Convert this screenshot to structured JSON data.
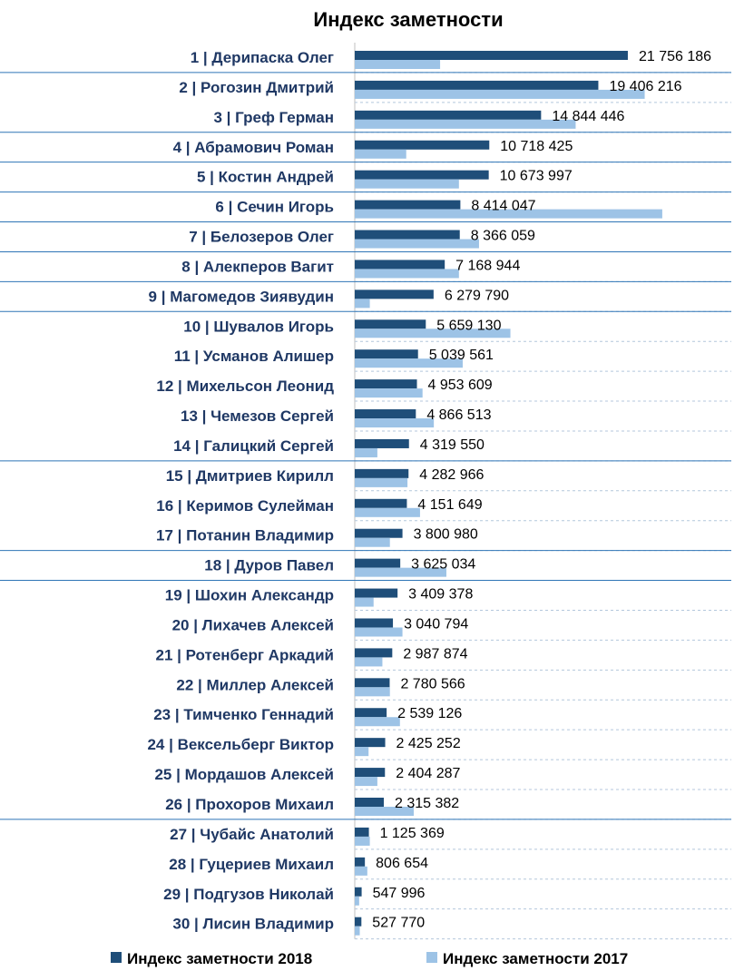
{
  "chart_data": {
    "type": "bar",
    "orientation": "horizontal",
    "title": "Индекс заметности",
    "categories": [
      "1 | Дерипаска Олег",
      "2 | Рогозин Дмитрий",
      "3 | Греф Герман",
      "4 | Абрамович Роман",
      "5 | Костин Андрей",
      "6 | Сечин Игорь",
      "7 | Белозеров Олег",
      "8 | Алекперов Вагит",
      "9 | Магомедов Зиявудин",
      "10 | Шувалов Игорь",
      "11 | Усманов Алишер",
      "12 | Михельсон Леонид",
      "13 | Чемезов Сергей",
      "14 | Галицкий Сергей",
      "15 | Дмитриев Кирилл",
      "16 | Керимов Сулейман",
      "17 | Потанин Владимир",
      "18 | Дуров Павел",
      "19 | Шохин Александр",
      "20 | Лихачев Алексей",
      "21 | Ротенберг Аркадий",
      "22 | Миллер Алексей",
      "23 | Тимченко Геннадий",
      "24 | Вексельберг Виктор",
      "25 | Мордашов Алексей",
      "26 | Прохоров Михаил",
      "27 | Чубайс Анатолий",
      "28 | Гуцериев Михаил",
      "29 | Подгузов Николай",
      "30 | Лисин Владимир"
    ],
    "series": [
      {
        "name": "Индекс заметности 2018",
        "color": "#1f4e79",
        "values": [
          21756186,
          19406216,
          14844446,
          10718425,
          10673997,
          8414047,
          8366059,
          7168944,
          6279790,
          5659130,
          5039561,
          4953609,
          4866513,
          4319550,
          4282966,
          4151649,
          3800980,
          3625034,
          3409378,
          3040794,
          2987874,
          2780566,
          2539126,
          2425252,
          2404287,
          2315382,
          1125369,
          806654,
          547996,
          527770
        ],
        "labels": [
          "21 756 186",
          "19 406 216",
          "14 844 446",
          "10 718 425",
          "10 673 997",
          "8 414 047",
          "8 366 059",
          "7 168 944",
          "6 279 790",
          "5 659 130",
          "5 039 561",
          "4 953 609",
          "4 866 513",
          "4 319 550",
          "4 282 966",
          "4 151 649",
          "3 800 980",
          "3 625 034",
          "3 409 378",
          "3 040 794",
          "2 987 874",
          "2 780 566",
          "2 539 126",
          "2 425 252",
          "2 404 287",
          "2 315 382",
          "1 125 369",
          "806 654",
          "547 996",
          "527 770"
        ]
      },
      {
        "name": "Индекс заметности 2017",
        "color": "#9dc3e6",
        "values": [
          6800000,
          23100000,
          17600000,
          4100000,
          8300000,
          24500000,
          9900000,
          8300000,
          1200000,
          12400000,
          8600000,
          5400000,
          6300000,
          1800000,
          4200000,
          5200000,
          2800000,
          7300000,
          1500000,
          3800000,
          2200000,
          2800000,
          3600000,
          1100000,
          1800000,
          4700000,
          1200000,
          1000000,
          350000,
          400000
        ]
      }
    ],
    "xlim": [
      0,
      30000000
    ],
    "grid": true,
    "legend": "bottom"
  }
}
